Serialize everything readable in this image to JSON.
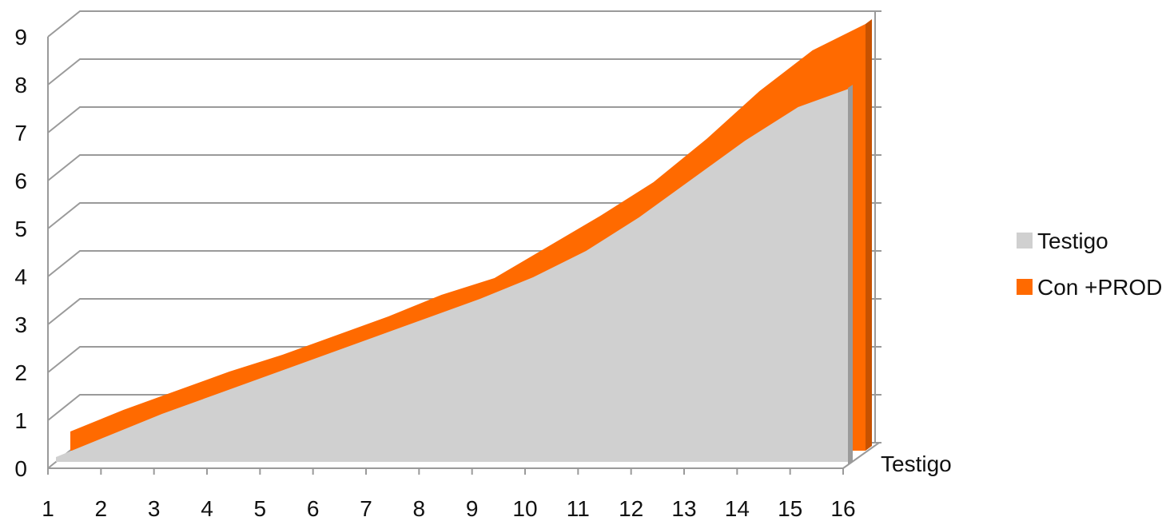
{
  "chart_data": {
    "type": "area",
    "style": "3d",
    "categories": [
      "1",
      "2",
      "3",
      "4",
      "5",
      "6",
      "7",
      "8",
      "9",
      "10",
      "11",
      "12",
      "13",
      "14",
      "15",
      "16"
    ],
    "series": [
      {
        "name": "Testigo",
        "color": "#d0d0d0",
        "values": [
          0.1,
          0.55,
          1.0,
          1.4,
          1.8,
          2.2,
          2.6,
          3.0,
          3.4,
          3.85,
          4.4,
          5.1,
          5.9,
          6.7,
          7.4,
          7.8
        ]
      },
      {
        "name": "Con +PROD",
        "color": "#ff6a00",
        "values": [
          0.4,
          0.85,
          1.25,
          1.65,
          2.0,
          2.4,
          2.8,
          3.25,
          3.6,
          4.25,
          4.9,
          5.6,
          6.5,
          7.5,
          8.35,
          8.9
        ]
      }
    ],
    "y_ticks": [
      "0",
      "1",
      "2",
      "3",
      "4",
      "5",
      "6",
      "7",
      "8",
      "9"
    ],
    "ylim": [
      0,
      9
    ],
    "depth_categories": [
      "Testigo"
    ],
    "legend_position": "right",
    "grid": true
  }
}
